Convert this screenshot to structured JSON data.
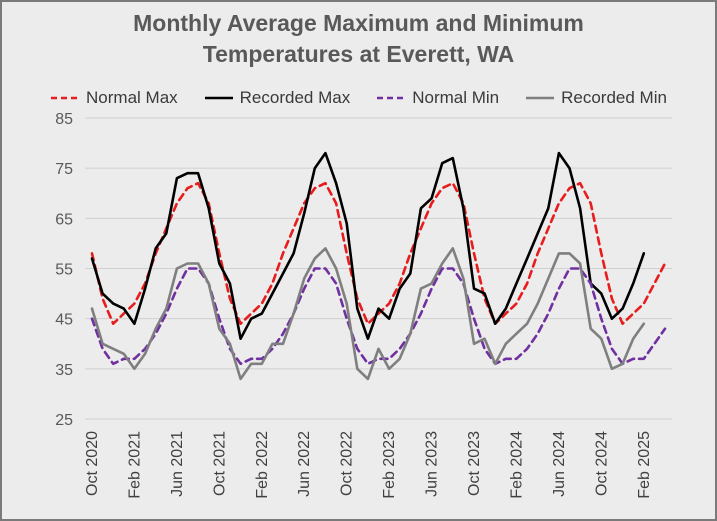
{
  "chart_data": {
    "type": "line",
    "title_line1": "Monthly Average Maximum and Minimum",
    "title_line2": "Temperatures at Everett, WA",
    "xlabel": "",
    "ylabel": "",
    "ylim": [
      25,
      85
    ],
    "yticks": [
      25,
      35,
      45,
      55,
      65,
      75,
      85
    ],
    "grid": true,
    "legend_position": "top",
    "x_start_month": "Oct 2020",
    "xtick_labels": [
      "Oct 2020",
      "Feb 2021",
      "Jun 2021",
      "Oct 2021",
      "Feb 2022",
      "Jun 2022",
      "Oct 2022",
      "Feb 2023",
      "Jun 2023",
      "Oct 2023",
      "Feb 2024",
      "Jun 2024",
      "Oct 2024",
      "Feb 2025"
    ],
    "series": [
      {
        "name": "Normal Max",
        "color": "#e81c1c",
        "dash": true,
        "values": [
          58,
          49,
          44,
          46,
          48,
          52,
          58,
          63,
          68,
          71,
          72,
          68,
          58,
          49,
          44,
          46,
          48,
          52,
          58,
          63,
          68,
          71,
          72,
          68,
          58,
          49,
          44,
          46,
          48,
          52,
          58,
          63,
          68,
          71,
          72,
          68,
          58,
          49,
          44,
          46,
          48,
          52,
          58,
          63,
          68,
          71,
          72,
          68,
          58,
          49,
          44,
          46,
          48,
          52,
          56
        ]
      },
      {
        "name": "Recorded Max",
        "color": "#000000",
        "dash": false,
        "values": [
          57,
          50,
          48,
          47,
          44,
          51,
          59,
          62,
          73,
          74,
          74,
          67,
          56,
          52,
          41,
          45,
          46,
          50,
          54,
          58,
          66,
          75,
          78,
          72,
          64,
          47,
          41,
          47,
          45,
          51,
          54,
          67,
          69,
          76,
          77,
          67,
          51,
          50,
          44,
          47,
          52,
          57,
          62,
          67,
          78,
          75,
          67,
          52,
          50,
          45,
          47,
          52,
          58
        ]
      },
      {
        "name": "Normal Min",
        "color": "#7030a0",
        "dash": true,
        "values": [
          45,
          39,
          36,
          37,
          37,
          39,
          42,
          46,
          51,
          55,
          55,
          52,
          45,
          39,
          36,
          37,
          37,
          39,
          42,
          46,
          51,
          55,
          55,
          52,
          45,
          39,
          36,
          37,
          37,
          39,
          42,
          46,
          51,
          55,
          55,
          52,
          45,
          39,
          36,
          37,
          37,
          39,
          42,
          46,
          51,
          55,
          55,
          52,
          45,
          39,
          36,
          37,
          37,
          40,
          43
        ]
      },
      {
        "name": "Recorded Min",
        "color": "#7f7f7f",
        "dash": false,
        "values": [
          47,
          40,
          39,
          38,
          35,
          38,
          43,
          47,
          55,
          56,
          56,
          52,
          43,
          40,
          33,
          36,
          36,
          40,
          40,
          46,
          53,
          57,
          59,
          55,
          48,
          35,
          33,
          39,
          35,
          37,
          42,
          51,
          52,
          56,
          59,
          53,
          40,
          41,
          36,
          40,
          42,
          44,
          48,
          53,
          58,
          58,
          56,
          43,
          41,
          35,
          36,
          41,
          44
        ]
      }
    ]
  }
}
